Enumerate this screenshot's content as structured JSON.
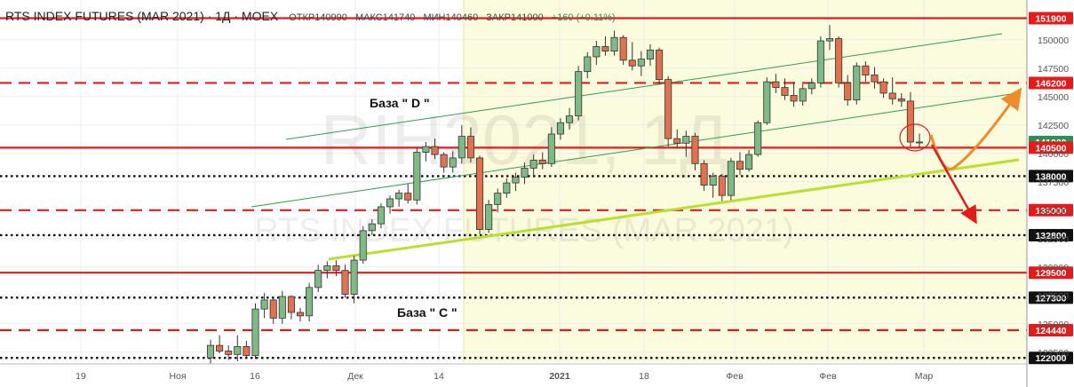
{
  "header": {
    "title": "RTS INDEX FUTURES (MAR 2021) · 1Д · MOEX",
    "open": "ОТКР140990",
    "high": "МАКС141740",
    "low": "МИН140460",
    "close": "ЗАКР141000",
    "change": "+160 (+0.11%)"
  },
  "watermark": {
    "symbol": "RIH2021, 1Д",
    "name": "RTS INDEX FUTURES (MAR 2021)"
  },
  "annotations": {
    "base_d": "База  \" D \"",
    "base_c": "База  \" C \""
  },
  "colors": {
    "up": "#7fba86",
    "down": "#e0724f",
    "level_red": "#e31b1b",
    "channel": "#2e9e4f",
    "support": "#b8e02e",
    "highlight_bg": "#fbfbde",
    "forecast_up": "#f08a2a",
    "forecast_down": "#e31b1b"
  },
  "chart_data": {
    "type": "candlestick",
    "ylim": [
      121000,
      153500
    ],
    "x_tick_labels": [
      "19",
      "Ноя",
      "16",
      "Дек",
      "14",
      "2021",
      "18",
      "Фев",
      "Фев",
      "Мар"
    ],
    "y_tick_labels": [
      "150000",
      "147500",
      "145000",
      "142500",
      "140000",
      "137500",
      "135000",
      "132500",
      "130000",
      "127500",
      "125000",
      "122500"
    ],
    "y_ticks": [
      150000,
      147500,
      145000,
      142500,
      140000,
      137500,
      135000,
      132500,
      130000,
      127500,
      125000,
      122500
    ],
    "levels": [
      {
        "value": 151900,
        "label": "151900",
        "style": "solid"
      },
      {
        "value": 146200,
        "label": "146200",
        "style": "dashed"
      },
      {
        "value": 141000,
        "label": "141000",
        "style": "current"
      },
      {
        "value": 140500,
        "label": "140500",
        "style": "solid"
      },
      {
        "value": 138000,
        "label": "138000",
        "style": "dotted"
      },
      {
        "value": 135000,
        "label": "135000",
        "style": "dashed"
      },
      {
        "value": 132800,
        "label": "132800",
        "style": "dotted"
      },
      {
        "value": 129500,
        "label": "129500",
        "style": "solid"
      },
      {
        "value": 127300,
        "label": "127300",
        "style": "dotted"
      },
      {
        "value": 124440,
        "label": "124440",
        "style": "dashed"
      },
      {
        "value": 122000,
        "label": "122000",
        "style": "dotted"
      }
    ],
    "candles": [
      {
        "o": 122000,
        "h": 123600,
        "l": 121500,
        "c": 123100
      },
      {
        "o": 123100,
        "h": 124000,
        "l": 122400,
        "c": 122600
      },
      {
        "o": 122600,
        "h": 123100,
        "l": 121800,
        "c": 122300
      },
      {
        "o": 122300,
        "h": 124000,
        "l": 121700,
        "c": 123000
      },
      {
        "o": 123000,
        "h": 123500,
        "l": 122000,
        "c": 122200
      },
      {
        "o": 122200,
        "h": 126800,
        "l": 121900,
        "c": 126300
      },
      {
        "o": 126300,
        "h": 127700,
        "l": 125500,
        "c": 127100
      },
      {
        "o": 127100,
        "h": 127400,
        "l": 125000,
        "c": 125500
      },
      {
        "o": 125500,
        "h": 127900,
        "l": 125000,
        "c": 127400
      },
      {
        "o": 127400,
        "h": 127500,
        "l": 125400,
        "c": 126000
      },
      {
        "o": 126000,
        "h": 126400,
        "l": 125200,
        "c": 125700
      },
      {
        "o": 125700,
        "h": 128600,
        "l": 125200,
        "c": 128200
      },
      {
        "o": 128200,
        "h": 130200,
        "l": 127800,
        "c": 129700
      },
      {
        "o": 129700,
        "h": 130500,
        "l": 129000,
        "c": 130100
      },
      {
        "o": 130100,
        "h": 130600,
        "l": 129200,
        "c": 129700
      },
      {
        "o": 129700,
        "h": 130200,
        "l": 127300,
        "c": 127600
      },
      {
        "o": 127600,
        "h": 131000,
        "l": 126800,
        "c": 130600
      },
      {
        "o": 130600,
        "h": 133600,
        "l": 130300,
        "c": 133200
      },
      {
        "o": 133200,
        "h": 134200,
        "l": 132800,
        "c": 133800
      },
      {
        "o": 133800,
        "h": 135600,
        "l": 133400,
        "c": 135300
      },
      {
        "o": 135300,
        "h": 136300,
        "l": 134700,
        "c": 136000
      },
      {
        "o": 136000,
        "h": 136800,
        "l": 135300,
        "c": 136500
      },
      {
        "o": 136500,
        "h": 137300,
        "l": 135600,
        "c": 135900
      },
      {
        "o": 135900,
        "h": 140500,
        "l": 135500,
        "c": 140100
      },
      {
        "o": 140100,
        "h": 141000,
        "l": 139300,
        "c": 140600
      },
      {
        "o": 140600,
        "h": 141300,
        "l": 139500,
        "c": 139900
      },
      {
        "o": 139900,
        "h": 140100,
        "l": 138300,
        "c": 138800
      },
      {
        "o": 138800,
        "h": 140200,
        "l": 138300,
        "c": 139600
      },
      {
        "o": 139600,
        "h": 142500,
        "l": 139100,
        "c": 141500
      },
      {
        "o": 141500,
        "h": 142300,
        "l": 139200,
        "c": 139600
      },
      {
        "o": 139600,
        "h": 139800,
        "l": 132900,
        "c": 133300
      },
      {
        "o": 133300,
        "h": 135900,
        "l": 133000,
        "c": 135500
      },
      {
        "o": 135500,
        "h": 136900,
        "l": 134800,
        "c": 136500
      },
      {
        "o": 136500,
        "h": 137800,
        "l": 136100,
        "c": 137400
      },
      {
        "o": 137400,
        "h": 138300,
        "l": 136700,
        "c": 137900
      },
      {
        "o": 137900,
        "h": 139200,
        "l": 137300,
        "c": 138700
      },
      {
        "o": 138700,
        "h": 139900,
        "l": 138100,
        "c": 139400
      },
      {
        "o": 139400,
        "h": 140100,
        "l": 138600,
        "c": 139100
      },
      {
        "o": 139100,
        "h": 142300,
        "l": 138800,
        "c": 141700
      },
      {
        "o": 141700,
        "h": 143100,
        "l": 141200,
        "c": 142700
      },
      {
        "o": 142700,
        "h": 144000,
        "l": 142100,
        "c": 143300
      },
      {
        "o": 143300,
        "h": 147700,
        "l": 142900,
        "c": 147200
      },
      {
        "o": 147200,
        "h": 148900,
        "l": 146600,
        "c": 148500
      },
      {
        "o": 148500,
        "h": 149900,
        "l": 147800,
        "c": 149400
      },
      {
        "o": 149400,
        "h": 150300,
        "l": 148600,
        "c": 149000
      },
      {
        "o": 149000,
        "h": 150800,
        "l": 148600,
        "c": 150200
      },
      {
        "o": 150200,
        "h": 150400,
        "l": 147800,
        "c": 148200
      },
      {
        "o": 148200,
        "h": 149800,
        "l": 147300,
        "c": 147700
      },
      {
        "o": 147700,
        "h": 149000,
        "l": 146800,
        "c": 148300
      },
      {
        "o": 148300,
        "h": 149600,
        "l": 147700,
        "c": 149100
      },
      {
        "o": 149100,
        "h": 149300,
        "l": 146100,
        "c": 146500
      },
      {
        "o": 146500,
        "h": 146800,
        "l": 140600,
        "c": 141300
      },
      {
        "o": 141300,
        "h": 142100,
        "l": 140500,
        "c": 140900
      },
      {
        "o": 140900,
        "h": 142000,
        "l": 139700,
        "c": 141500
      },
      {
        "o": 141500,
        "h": 141800,
        "l": 138500,
        "c": 139100
      },
      {
        "o": 139100,
        "h": 139400,
        "l": 136700,
        "c": 137200
      },
      {
        "o": 137200,
        "h": 138300,
        "l": 136100,
        "c": 138000
      },
      {
        "o": 138000,
        "h": 138200,
        "l": 135800,
        "c": 136300
      },
      {
        "o": 136300,
        "h": 139600,
        "l": 135900,
        "c": 139300
      },
      {
        "o": 139300,
        "h": 140100,
        "l": 138100,
        "c": 138600
      },
      {
        "o": 138600,
        "h": 140300,
        "l": 138400,
        "c": 139900
      },
      {
        "o": 139900,
        "h": 142900,
        "l": 139700,
        "c": 142700
      },
      {
        "o": 142700,
        "h": 146700,
        "l": 142500,
        "c": 146300
      },
      {
        "o": 146300,
        "h": 147000,
        "l": 145300,
        "c": 145800
      },
      {
        "o": 145800,
        "h": 146600,
        "l": 144700,
        "c": 145100
      },
      {
        "o": 145100,
        "h": 146300,
        "l": 144100,
        "c": 144600
      },
      {
        "o": 144600,
        "h": 146100,
        "l": 144200,
        "c": 145700
      },
      {
        "o": 145700,
        "h": 146600,
        "l": 145200,
        "c": 146200
      },
      {
        "o": 146200,
        "h": 150300,
        "l": 145800,
        "c": 149900
      },
      {
        "o": 149900,
        "h": 151300,
        "l": 149100,
        "c": 150100
      },
      {
        "o": 150100,
        "h": 150300,
        "l": 145800,
        "c": 146200
      },
      {
        "o": 146200,
        "h": 146900,
        "l": 144200,
        "c": 144700
      },
      {
        "o": 144700,
        "h": 148000,
        "l": 144300,
        "c": 147700
      },
      {
        "o": 147700,
        "h": 148100,
        "l": 146300,
        "c": 146900
      },
      {
        "o": 146900,
        "h": 147600,
        "l": 145700,
        "c": 146300
      },
      {
        "o": 146300,
        "h": 146600,
        "l": 144900,
        "c": 145300
      },
      {
        "o": 145300,
        "h": 146700,
        "l": 144300,
        "c": 144800
      },
      {
        "o": 144800,
        "h": 145300,
        "l": 144100,
        "c": 144600
      },
      {
        "o": 144600,
        "h": 145400,
        "l": 140600,
        "c": 141000
      },
      {
        "o": 140990,
        "h": 141740,
        "l": 140460,
        "c": 141000
      }
    ]
  }
}
